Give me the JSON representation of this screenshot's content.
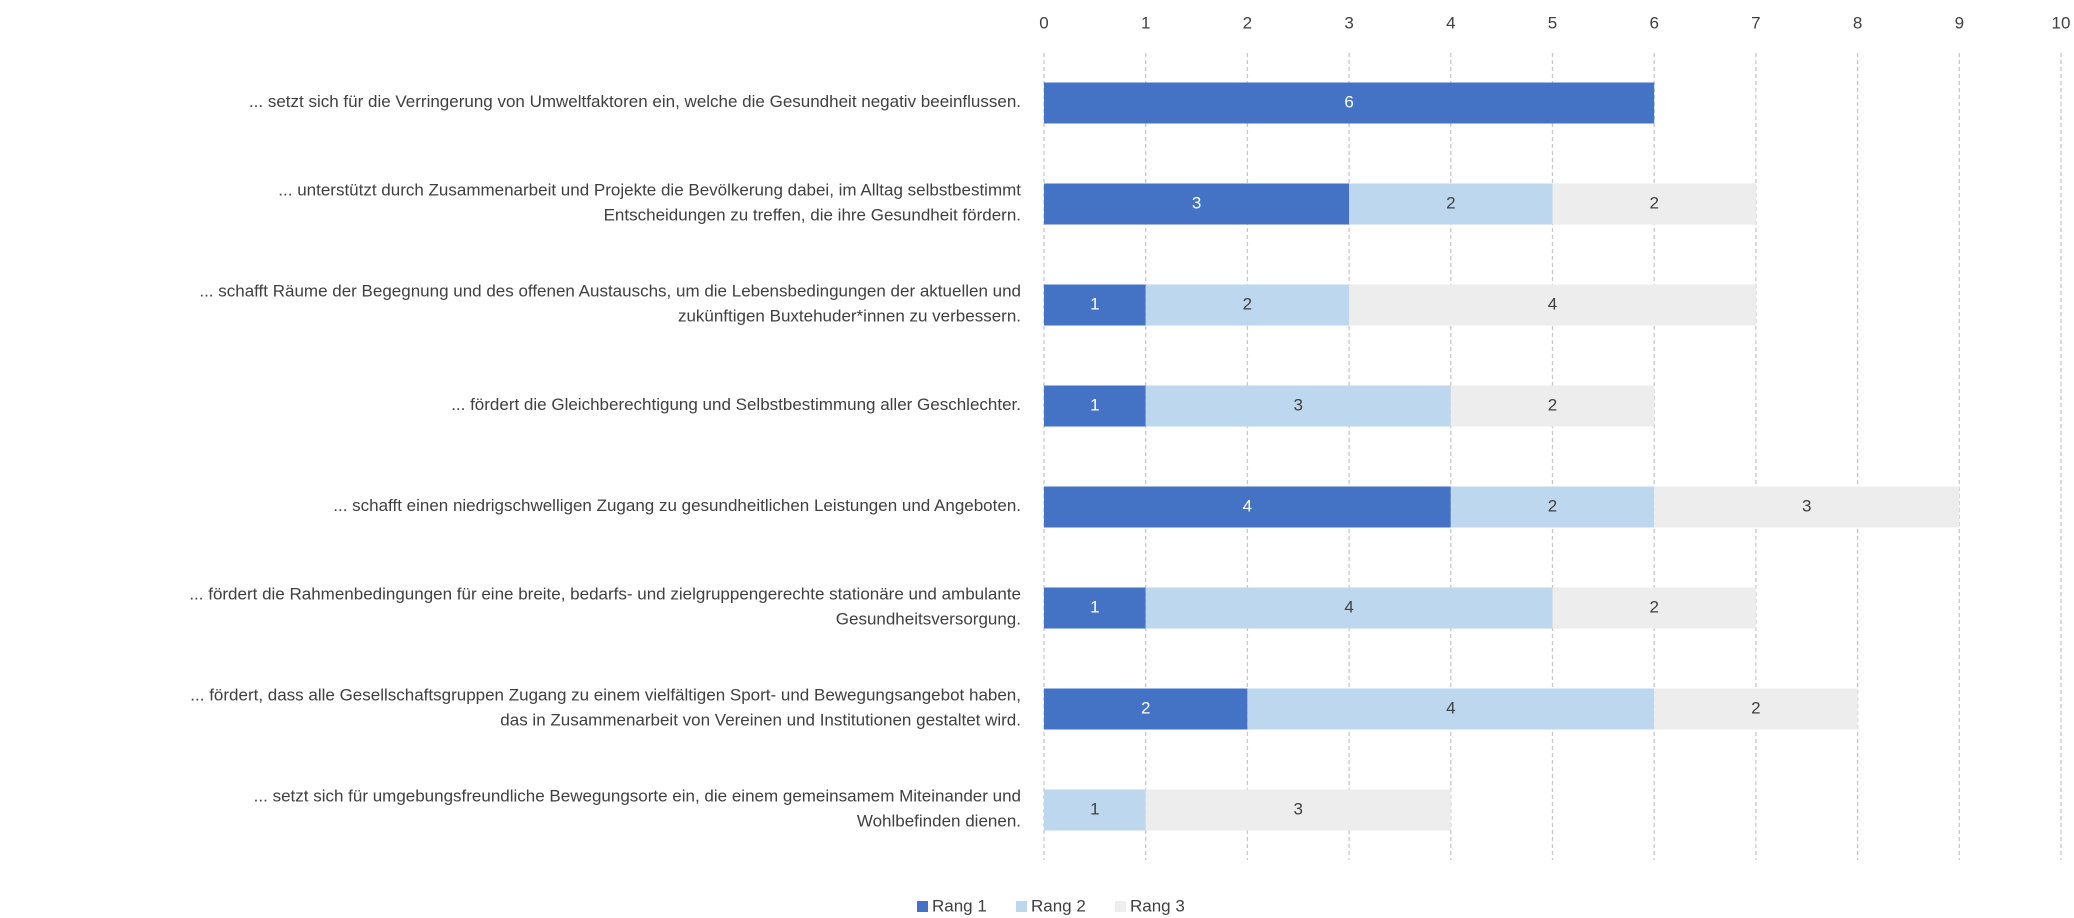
{
  "chart_data": {
    "type": "bar",
    "orientation": "horizontal",
    "stacked": true,
    "categories": [
      [
        "... setzt sich für die Verringerung von Umweltfaktoren ein, welche die Gesundheit negativ beeinflussen."
      ],
      [
        "... unterstützt durch Zusammenarbeit und Projekte die Bevölkerung dabei, im Alltag selbstbestimmt",
        "Entscheidungen zu treffen, die ihre Gesundheit fördern."
      ],
      [
        "... schafft Räume der Begegnung und des offenen Austauschs, um die Lebensbedingungen der aktuellen und",
        "zukünftigen Buxtehuder*innen zu verbessern."
      ],
      [
        "... fördert die Gleichberechtigung und Selbstbestimmung aller Geschlechter."
      ],
      [
        "... schafft einen niedrigschwelligen Zugang zu gesundheitlichen Leistungen und Angeboten."
      ],
      [
        "... fördert die Rahmenbedingungen für eine breite, bedarfs- und zielgruppengerechte stationäre und ambulante",
        "Gesundheitsversorgung."
      ],
      [
        "... fördert, dass alle Gesellschaftsgruppen Zugang zu einem vielfältigen Sport- und Bewegungsangebot haben,",
        "das in Zusammenarbeit von Vereinen und Institutionen gestaltet wird."
      ],
      [
        "... setzt sich für umgebungsfreundliche Bewegungsorte ein, die einem gemeinsamem Miteinander und",
        "Wohlbefinden dienen."
      ]
    ],
    "series": [
      {
        "name": "Rang 1",
        "color": "#4472c4",
        "label_color": "#ffffff",
        "values": [
          6,
          3,
          1,
          1,
          4,
          1,
          2,
          null
        ]
      },
      {
        "name": "Rang 2",
        "color": "#bdd7ee",
        "label_color": "#404040",
        "values": [
          null,
          2,
          2,
          3,
          2,
          4,
          4,
          1
        ]
      },
      {
        "name": "Rang 3",
        "color": "#ededed",
        "label_color": "#404040",
        "values": [
          null,
          2,
          4,
          2,
          3,
          2,
          2,
          3
        ]
      }
    ],
    "xlim": [
      0,
      10
    ],
    "xticks": [
      0,
      1,
      2,
      3,
      4,
      5,
      6,
      7,
      8,
      9,
      10
    ],
    "grid": true,
    "legend": "bottom"
  }
}
